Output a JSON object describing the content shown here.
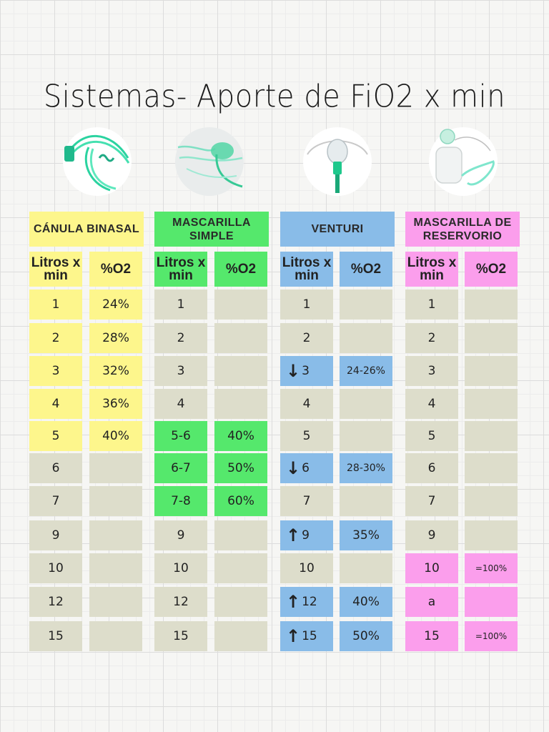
{
  "title": "Sistemas- Aporte de FiO2 x min",
  "colors": {
    "yellow": "#fdf68c",
    "green": "#55e86c",
    "blue": "#89bce8",
    "pink": "#fb9eec",
    "gray": "#ddddcb"
  },
  "systems": [
    {
      "header": "CÁNULA BINASAL",
      "col_liters": "Litros x min",
      "col_o2": "%O2",
      "rows": [
        {
          "liters": "1",
          "o2": "24%"
        },
        {
          "liters": "2",
          "o2": "28%"
        },
        {
          "liters": "3",
          "o2": "32%"
        },
        {
          "liters": "4",
          "o2": "36%"
        },
        {
          "liters": "5",
          "o2": "40%"
        },
        {
          "liters": "6",
          "o2": ""
        },
        {
          "liters": "7",
          "o2": ""
        },
        {
          "liters": "9",
          "o2": ""
        },
        {
          "liters": "10",
          "o2": ""
        },
        {
          "liters": "12",
          "o2": ""
        },
        {
          "liters": "15",
          "o2": ""
        }
      ]
    },
    {
      "header": "MASCARILLA SIMPLE",
      "col_liters": "Litros x min",
      "col_o2": "%O2",
      "rows": [
        {
          "liters": "1",
          "o2": ""
        },
        {
          "liters": "2",
          "o2": ""
        },
        {
          "liters": "3",
          "o2": ""
        },
        {
          "liters": "4",
          "o2": ""
        },
        {
          "liters": "5-6",
          "o2": "40%"
        },
        {
          "liters": "6-7",
          "o2": "50%"
        },
        {
          "liters": "7-8",
          "o2": "60%"
        },
        {
          "liters": "9",
          "o2": ""
        },
        {
          "liters": "10",
          "o2": ""
        },
        {
          "liters": "12",
          "o2": ""
        },
        {
          "liters": "15",
          "o2": ""
        }
      ]
    },
    {
      "header": "VENTURI",
      "col_liters": "Litros x min",
      "col_o2": "%O2",
      "arrow_down": "↓",
      "arrow_up": "↑",
      "rows": [
        {
          "liters": "1",
          "o2": ""
        },
        {
          "liters": "2",
          "o2": ""
        },
        {
          "liters": "3",
          "o2": "24-26%"
        },
        {
          "liters": "4",
          "o2": ""
        },
        {
          "liters": "5",
          "o2": ""
        },
        {
          "liters": "6",
          "o2": "28-30%"
        },
        {
          "liters": "7",
          "o2": ""
        },
        {
          "liters": "9",
          "o2": "35%"
        },
        {
          "liters": "10",
          "o2": ""
        },
        {
          "liters": "12",
          "o2": "40%"
        },
        {
          "liters": "15",
          "o2": "50%"
        }
      ]
    },
    {
      "header": "MASCARILLA DE RESERVORIO",
      "col_liters": "Litros x min",
      "col_o2": "%O2",
      "rows": [
        {
          "liters": "1",
          "o2": ""
        },
        {
          "liters": "2",
          "o2": ""
        },
        {
          "liters": "3",
          "o2": ""
        },
        {
          "liters": "4",
          "o2": ""
        },
        {
          "liters": "5",
          "o2": ""
        },
        {
          "liters": "6",
          "o2": ""
        },
        {
          "liters": "7",
          "o2": ""
        },
        {
          "liters": "9",
          "o2": ""
        },
        {
          "liters": "10",
          "o2": "=100%"
        },
        {
          "liters": "a",
          "o2": ""
        },
        {
          "liters": "15",
          "o2": "=100%"
        }
      ]
    }
  ]
}
